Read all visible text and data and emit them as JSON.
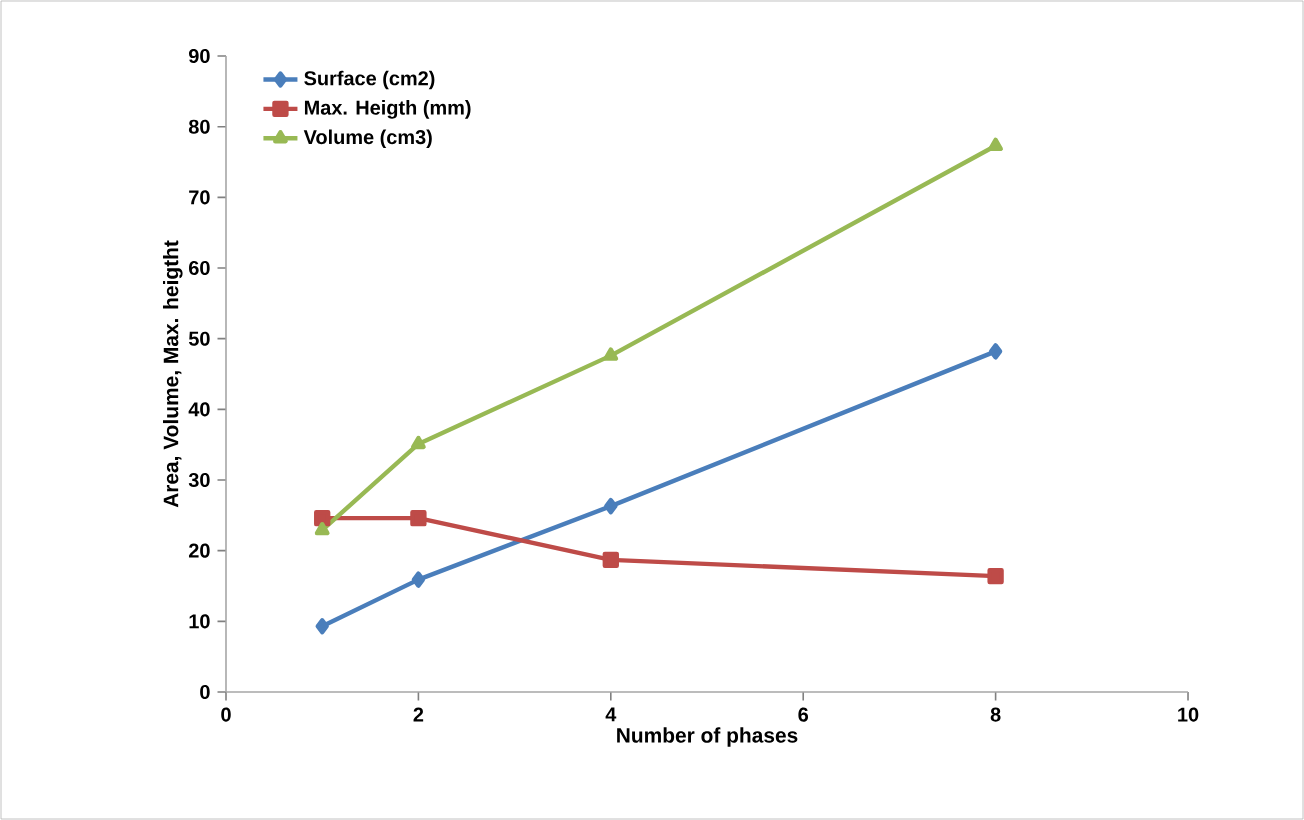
{
  "chart_data": {
    "type": "line",
    "xlabel": "Number of phases",
    "ylabel": "Area, Volume, Max. heigtht",
    "x": [
      1,
      2,
      4,
      8
    ],
    "xlim": [
      0,
      10
    ],
    "xticks": [
      0,
      2,
      4,
      6,
      8,
      10
    ],
    "ylim": [
      0,
      90
    ],
    "yticks": [
      0,
      10,
      20,
      30,
      40,
      50,
      60,
      70,
      80,
      90
    ],
    "grid": false,
    "legend": "top left",
    "line_style": "solid",
    "series": [
      {
        "name": "Surface (cm2)",
        "color": "#4a7ebb",
        "marker": "diamond",
        "values": [
          9.3,
          15.9,
          26.3,
          48.2
        ]
      },
      {
        "name": "Max. Heigth (mm)",
        "color": "#be4b48",
        "marker": "square",
        "values": [
          24.6,
          24.6,
          18.7,
          16.4
        ]
      },
      {
        "name": "Volume (cm3)",
        "color": "#98b954",
        "marker": "triangle",
        "values": [
          22.9,
          35.1,
          47.6,
          77.3
        ]
      }
    ]
  }
}
